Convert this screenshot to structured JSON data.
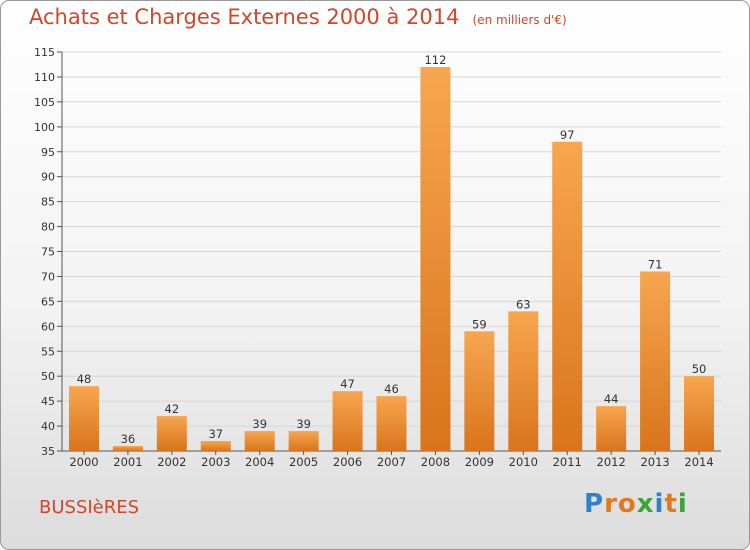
{
  "chart_data": {
    "type": "bar",
    "title": "Achats et Charges Externes 2000 à 2014",
    "unit_note": "(en milliers d'€)",
    "categories": [
      "2000",
      "2001",
      "2002",
      "2003",
      "2004",
      "2005",
      "2006",
      "2007",
      "2008",
      "2009",
      "2010",
      "2011",
      "2012",
      "2013",
      "2014"
    ],
    "values": [
      48,
      36,
      42,
      37,
      39,
      39,
      47,
      46,
      112,
      59,
      63,
      97,
      44,
      71,
      50
    ],
    "ylim": [
      35,
      115
    ],
    "yticks": [
      35,
      40,
      45,
      50,
      55,
      60,
      65,
      70,
      75,
      80,
      85,
      90,
      95,
      100,
      105,
      110,
      115
    ],
    "grid": true,
    "bar_color": "#f0912d"
  },
  "commune": "BUSSIèRES",
  "logo": {
    "letters": [
      "P",
      "r",
      "o",
      "x",
      "i",
      "t",
      "i"
    ]
  }
}
